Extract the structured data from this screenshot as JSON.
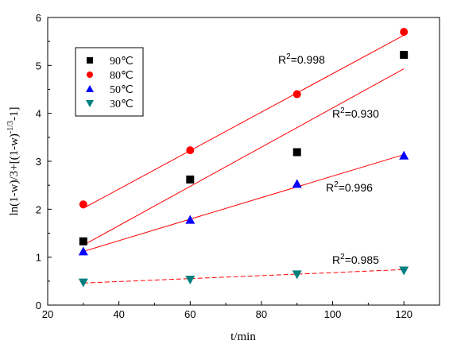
{
  "chart_data": {
    "type": "scatter",
    "xlabel": "t/min",
    "ylabel_parts": {
      "base": "ln(1-w)/3+[(1-w)",
      "sup": "-1/3",
      "tail": "-1]"
    },
    "xlim": [
      20,
      130
    ],
    "ylim": [
      0,
      6
    ],
    "xticks": [
      20,
      40,
      60,
      80,
      100,
      120
    ],
    "yticks": [
      0,
      1,
      2,
      3,
      4,
      5,
      6
    ],
    "grid": false,
    "legend_position": "top-left",
    "series": [
      {
        "name": "90℃",
        "marker": "square",
        "color": "#000000",
        "x": [
          30,
          60,
          90,
          120
        ],
        "y": [
          1.33,
          2.62,
          3.19,
          5.22
        ],
        "fit": {
          "x": [
            30,
            120
          ],
          "y": [
            1.25,
            4.93
          ],
          "style": "solid"
        },
        "r2_label": "R",
        "r2_sup": "2",
        "r2_value": "=0.930"
      },
      {
        "name": "80℃",
        "marker": "circle",
        "color": "#ff0000",
        "x": [
          30,
          60,
          90,
          120
        ],
        "y": [
          2.1,
          3.23,
          4.4,
          5.7
        ],
        "fit": {
          "x": [
            30,
            120
          ],
          "y": [
            2.02,
            5.63
          ],
          "style": "solid"
        },
        "r2_label": "R",
        "r2_sup": "2",
        "r2_value": "=0.998"
      },
      {
        "name": "50℃",
        "marker": "triangle-up",
        "color": "#0000ff",
        "x": [
          30,
          60,
          90,
          120
        ],
        "y": [
          1.12,
          1.78,
          2.53,
          3.12
        ],
        "fit": {
          "x": [
            30,
            120
          ],
          "y": [
            1.12,
            3.14
          ],
          "style": "solid"
        },
        "r2_label": "R",
        "r2_sup": "2",
        "r2_value": "=0.996"
      },
      {
        "name": "30℃",
        "marker": "triangle-down",
        "color": "#008080",
        "x": [
          30,
          60,
          90,
          120
        ],
        "y": [
          0.47,
          0.53,
          0.64,
          0.72
        ],
        "fit": {
          "x": [
            30,
            120
          ],
          "y": [
            0.46,
            0.74
          ],
          "style": "dashed"
        },
        "r2_label": "R",
        "r2_sup": "2",
        "r2_value": "=0.985"
      }
    ],
    "fit_line_color": "#ff0000"
  }
}
